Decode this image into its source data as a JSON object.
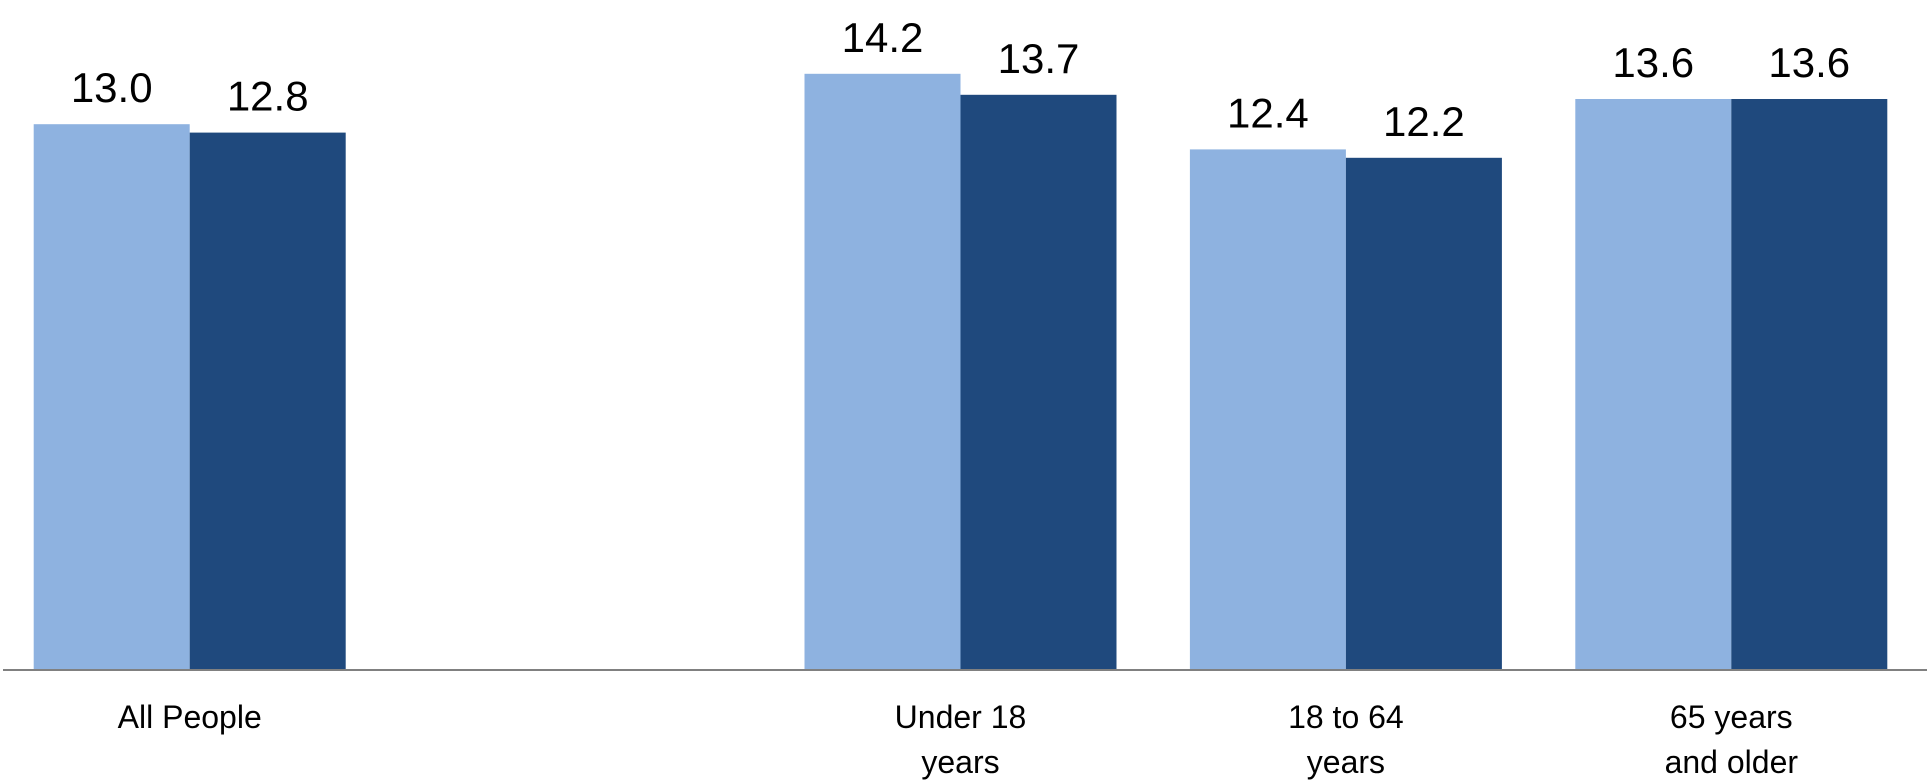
{
  "chart_data": {
    "type": "bar",
    "categories": [
      [
        "All People"
      ],
      [
        ""
      ],
      [
        "Under 18",
        "years"
      ],
      [
        "18 to 64",
        "years"
      ],
      [
        "65 years",
        "and older"
      ]
    ],
    "series": [
      {
        "values": [
          13.0,
          null,
          14.2,
          12.4,
          13.6
        ],
        "color": "#8eb2e0"
      },
      {
        "values": [
          12.8,
          null,
          13.7,
          12.2,
          13.6
        ],
        "color": "#1f497d"
      }
    ],
    "ylim": [
      0,
      15.6
    ],
    "grid": false,
    "show_y_axis": false,
    "data_labels": true
  }
}
